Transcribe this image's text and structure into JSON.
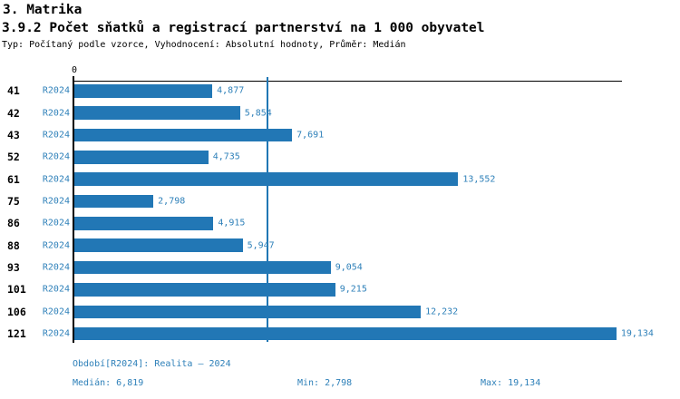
{
  "header": {
    "section_title": "3. Matrika",
    "chart_title": "3.9.2 Počet sňatků a registrací partnerství na 1 000 obyvatel",
    "subtitle": "Typ: Počítaný podle vzorce, Vyhodnocení: Absolutní hodnoty, Průměr: Medián"
  },
  "axis": {
    "zero_label": "0"
  },
  "colors": {
    "bar": "#2277b5",
    "median_line": "#2077b4",
    "blue_text": "#2e80b9",
    "axis": "#000000"
  },
  "chart_data": {
    "type": "bar",
    "orientation": "horizontal",
    "title": "3.9.2 Počet sňatků a registrací partnerství na 1 000 obyvatel",
    "series_label": "R2024",
    "categories": [
      "41",
      "42",
      "43",
      "52",
      "61",
      "75",
      "86",
      "88",
      "93",
      "101",
      "106",
      "121"
    ],
    "values": [
      4.877,
      5.854,
      7.691,
      4.735,
      13.552,
      2.798,
      4.915,
      5.947,
      9.054,
      9.215,
      12.232,
      19.134
    ],
    "value_labels": [
      "4,877",
      "5,854",
      "7,691",
      "4,735",
      "13,552",
      "2,798",
      "4,915",
      "5,947",
      "9,054",
      "9,215",
      "12,232",
      "19,134"
    ],
    "xlim": [
      0,
      19.35
    ],
    "median": 6.819,
    "grid": false,
    "legend_position": "none"
  },
  "footer": {
    "period": "Období[R2024]: Realita – 2024",
    "median": "Medián: 6,819",
    "min": "Min: 2,798",
    "max": "Max: 19,134"
  }
}
